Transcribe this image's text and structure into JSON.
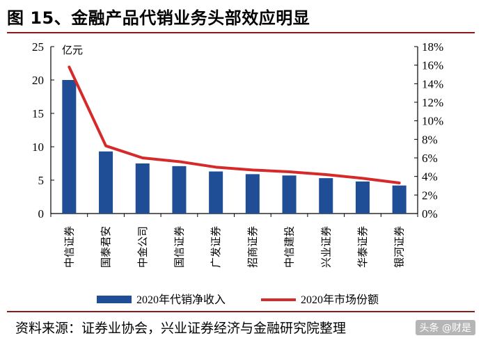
{
  "title": "图 15、金融产品代销业务头部效应明显",
  "source": "资料来源：证券业协会，兴业证券经济与金融研究院整理",
  "watermark": "头条 @财是",
  "chart_data": {
    "type": "bar+line",
    "unit_label": "亿元",
    "categories": [
      "中信证券",
      "国泰君安",
      "中金公司",
      "国信证券",
      "广发证券",
      "招商证券",
      "中信建投",
      "兴业证券",
      "华泰证券",
      "银河证券"
    ],
    "series": [
      {
        "name": "2020年代销净收入",
        "type": "bar",
        "axis": "left",
        "color": "#1f4e96",
        "values": [
          20.0,
          9.3,
          7.5,
          7.1,
          6.3,
          5.9,
          5.7,
          5.3,
          4.8,
          4.2
        ]
      },
      {
        "name": "2020年市场份额",
        "type": "line",
        "axis": "right",
        "color": "#d62a2a",
        "values": [
          15.8,
          7.3,
          6.0,
          5.6,
          5.0,
          4.7,
          4.5,
          4.2,
          3.8,
          3.3
        ]
      }
    ],
    "y_left": {
      "min": 0,
      "max": 25,
      "ticks": [
        0,
        5,
        10,
        15,
        20,
        25
      ]
    },
    "y_right": {
      "min": 0,
      "max": 18,
      "ticks": [
        "0%",
        "2%",
        "4%",
        "6%",
        "8%",
        "10%",
        "12%",
        "14%",
        "16%",
        "18%"
      ]
    },
    "legend_position": "bottom",
    "grid": false
  }
}
